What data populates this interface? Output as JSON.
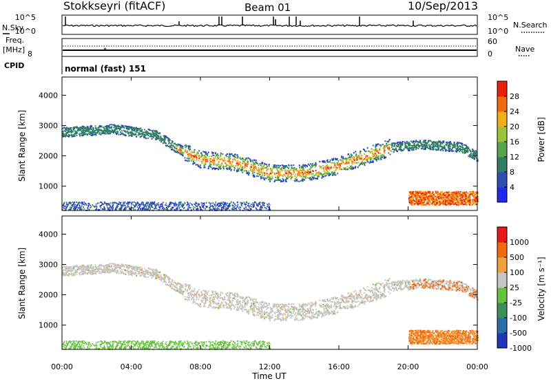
{
  "header": {
    "station": "Stokkseyri (fitACF)",
    "beam": "Beam 01",
    "date": "10/Sep/2013"
  },
  "noise_panel": {
    "left_label": "N.Sky",
    "right_label": "N.Search",
    "left_ticks": [
      "10^5",
      "10^0"
    ],
    "right_ticks": [
      "10^5",
      "10^0"
    ]
  },
  "freq_panel": {
    "left_label_1": "Freq.",
    "left_label_2": "[MHz]",
    "left_ticks": [
      "8"
    ],
    "right_label": "Nave",
    "right_ticks": [
      "60",
      "0"
    ]
  },
  "cpid_panel": {
    "label": "CPID",
    "program": "normal (fast) 151"
  },
  "chart_data": [
    {
      "type": "heatmap",
      "title": "",
      "ylabel": "Slant Range [km]",
      "xlabel": "",
      "ylim": [
        200,
        4600
      ],
      "yticks": [
        "1000",
        "2000",
        "3000",
        "4000"
      ],
      "xlim": [
        "00:00",
        "24:00"
      ],
      "colorbar": {
        "label": "Power [dB]",
        "ticks": [
          "4",
          "8",
          "12",
          "16",
          "20",
          "24",
          "28"
        ],
        "colors": [
          "#1f29e8",
          "#2f4fb0",
          "#2e7c63",
          "#5aa24a",
          "#9ac33a",
          "#f2ad1a",
          "#f06a10",
          "#e8200c"
        ]
      }
    },
    {
      "type": "heatmap",
      "title": "",
      "ylabel": "Slant Range [km]",
      "xlabel": "Time UT",
      "ylim": [
        200,
        4600
      ],
      "yticks": [
        "1000",
        "2000",
        "3000",
        "4000"
      ],
      "xticks": [
        "00:00",
        "04:00",
        "08:00",
        "12:00",
        "16:00",
        "20:00",
        "00:00"
      ],
      "colorbar": {
        "label": "Velocity [m s⁻¹]",
        "ticks": [
          "1000",
          "500",
          "100",
          "25",
          "-25",
          "-100",
          "-500",
          "-1000"
        ],
        "colors": [
          "#2136b8",
          "#2d6ea8",
          "#3a8f5a",
          "#66c23c",
          "#c4c4c0",
          "#f0a040",
          "#f06a10",
          "#e61818"
        ]
      }
    }
  ]
}
